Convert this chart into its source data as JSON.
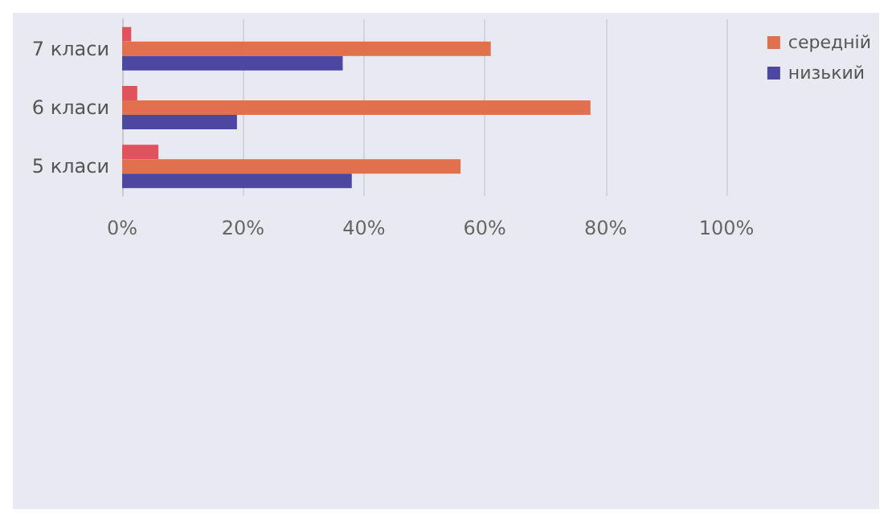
{
  "chart_data": {
    "type": "bar",
    "orientation": "horizontal",
    "categories": [
      "7 класи",
      "6 класи",
      "5 класи"
    ],
    "series": [
      {
        "color": "#e0525c",
        "values": [
          1.5,
          2.5,
          6
        ]
      },
      {
        "name": "середній",
        "color": "#e0704e",
        "values": [
          61,
          77.5,
          56
        ]
      },
      {
        "name": "низький",
        "color": "#4c48a2",
        "values": [
          36.5,
          19,
          38
        ]
      }
    ],
    "xlim": [
      0,
      100
    ],
    "xticks": [
      {
        "value": 0,
        "label": "0%"
      },
      {
        "value": 20,
        "label": "20%"
      },
      {
        "value": 40,
        "label": "40%"
      },
      {
        "value": 60,
        "label": "60%"
      },
      {
        "value": 80,
        "label": "80%"
      },
      {
        "value": 100,
        "label": "100%"
      }
    ],
    "grid": "x",
    "legend": "right"
  }
}
